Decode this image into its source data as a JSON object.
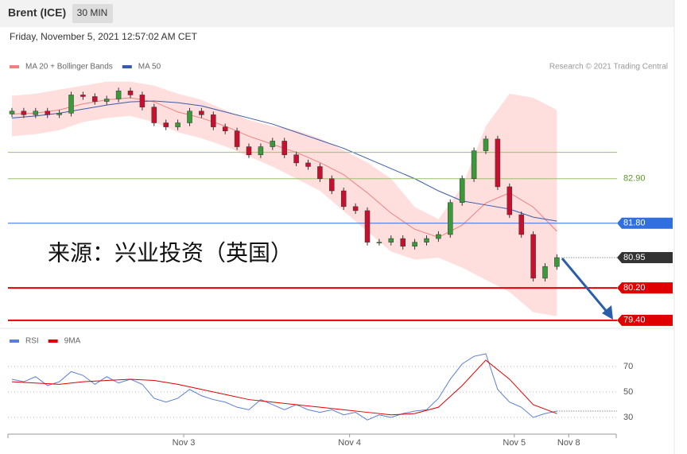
{
  "header": {
    "symbol": "Brent (ICE)",
    "interval": "30 MIN",
    "datetime": "Friday, November 5, 2021 12:57:02 AM CET"
  },
  "chart_data": [
    {
      "type": "candlestick",
      "legend": [
        {
          "name": "MA 20 + Bollinger Bands",
          "color": "#f08080"
        },
        {
          "name": "MA 50",
          "color": "#3a5ba9"
        }
      ],
      "credit": "Research © 2021 Trading Central",
      "watermark": "来源：兴业投资（英国）",
      "ylim": [
        79.2,
        85.45
      ],
      "open": [
        84.5,
        84.57,
        84.48,
        84.57,
        84.48,
        84.52,
        84.97,
        84.93,
        84.81,
        84.87,
        85.07,
        84.97,
        84.67,
        84.28,
        84.18,
        84.28,
        84.57,
        84.48,
        84.18,
        84.08,
        83.69,
        83.49,
        83.69,
        83.83,
        83.49,
        83.29,
        83.2,
        82.9,
        82.6,
        82.21,
        82.11,
        81.33,
        81.33,
        81.42,
        81.23,
        81.33,
        81.42,
        81.52,
        82.31,
        82.9,
        83.59,
        83.88,
        82.7,
        82.01,
        81.52,
        80.44,
        80.73
      ],
      "high": [
        84.65,
        84.65,
        84.65,
        84.65,
        84.6,
        85.05,
        85.05,
        85.01,
        84.95,
        85.15,
        85.15,
        85.05,
        84.75,
        84.36,
        84.36,
        84.65,
        84.65,
        84.56,
        84.26,
        84.16,
        83.77,
        83.77,
        83.91,
        83.91,
        83.57,
        83.37,
        83.28,
        82.98,
        82.68,
        82.29,
        82.19,
        81.41,
        81.5,
        81.5,
        81.41,
        81.5,
        81.6,
        82.39,
        82.98,
        83.67,
        83.96,
        83.96,
        82.78,
        82.09,
        81.6,
        80.81,
        81.03
      ],
      "low": [
        84.42,
        84.4,
        84.4,
        84.4,
        84.4,
        84.44,
        84.85,
        84.73,
        84.73,
        84.79,
        84.89,
        84.59,
        84.2,
        84.1,
        84.1,
        84.2,
        84.4,
        84.1,
        84.0,
        83.61,
        83.41,
        83.41,
        83.61,
        83.41,
        83.21,
        83.12,
        82.82,
        82.52,
        82.13,
        82.03,
        81.25,
        81.25,
        81.25,
        81.15,
        81.15,
        81.25,
        81.34,
        81.44,
        82.23,
        82.82,
        83.51,
        82.62,
        81.93,
        81.44,
        80.36,
        80.36,
        80.65
      ],
      "close": [
        84.57,
        84.48,
        84.57,
        84.48,
        84.52,
        84.97,
        84.93,
        84.81,
        84.87,
        85.07,
        84.97,
        84.67,
        84.28,
        84.18,
        84.28,
        84.57,
        84.48,
        84.18,
        84.08,
        83.69,
        83.49,
        83.69,
        83.83,
        83.49,
        83.29,
        83.2,
        82.9,
        82.6,
        82.21,
        82.11,
        81.33,
        81.33,
        81.42,
        81.23,
        81.33,
        81.42,
        81.52,
        82.31,
        82.9,
        83.59,
        83.88,
        82.7,
        82.01,
        81.52,
        80.44,
        80.73,
        80.95
      ],
      "up_color": "#3a9a3a",
      "down_color": "#c8102e",
      "indicator_x": [
        0,
        2,
        4,
        6,
        8,
        10,
        12,
        14,
        16,
        18,
        20,
        22,
        24,
        26,
        28,
        30,
        32,
        34,
        36,
        38,
        40,
        42,
        44,
        46
      ],
      "ma20": [
        84.5,
        84.52,
        84.6,
        84.75,
        84.85,
        84.9,
        84.8,
        84.55,
        84.4,
        84.2,
        83.95,
        83.75,
        83.55,
        83.3,
        83.0,
        82.55,
        82.05,
        81.65,
        81.45,
        81.75,
        82.3,
        82.55,
        82.2,
        81.6
      ],
      "bb_upper": [
        84.95,
        85.0,
        85.1,
        85.2,
        85.3,
        85.3,
        85.2,
        85.0,
        84.85,
        84.6,
        84.35,
        84.2,
        84.1,
        83.9,
        83.6,
        83.3,
        82.9,
        82.2,
        81.9,
        82.7,
        84.2,
        85.0,
        84.9,
        84.6
      ],
      "bb_lower": [
        83.95,
        84.0,
        84.1,
        84.3,
        84.4,
        84.45,
        84.3,
        84.05,
        83.9,
        83.7,
        83.45,
        83.2,
        82.9,
        82.6,
        82.1,
        81.6,
        81.1,
        80.9,
        80.95,
        80.7,
        80.4,
        80.1,
        79.6,
        79.5
      ],
      "ma50": [
        84.4,
        84.45,
        84.52,
        84.62,
        84.72,
        84.8,
        84.82,
        84.78,
        84.7,
        84.55,
        84.4,
        84.25,
        84.05,
        83.85,
        83.65,
        83.4,
        83.15,
        82.9,
        82.6,
        82.35,
        82.25,
        82.15,
        81.95,
        81.85
      ],
      "levels": [
        {
          "value": 83.55,
          "color": "#9bc06a",
          "text_color": "#5a9a2a"
        },
        {
          "value": 82.9,
          "label": "82.90",
          "color": "#9bc06a",
          "text_color": "#5a9a2a"
        },
        {
          "value": 81.8,
          "label": "81.80",
          "color": "#2f6fe0",
          "text_color": "#fff"
        },
        {
          "value": 80.2,
          "label": "80.20",
          "color": "#e00000",
          "text_color": "#fff"
        },
        {
          "value": 79.4,
          "label": "79.40",
          "color": "#e00000",
          "text_color": "#fff"
        }
      ],
      "current": 80.95,
      "current_color": "#333"
    },
    {
      "type": "line",
      "legend": [
        {
          "name": "RSI",
          "color": "#5b7fd6"
        },
        {
          "name": "9MA",
          "color": "#e00000"
        }
      ],
      "ylim": [
        20.6,
        83.1
      ],
      "yticks": [
        70,
        50,
        30
      ],
      "rsi": [
        60,
        58,
        62,
        55,
        58,
        66,
        63,
        56,
        62,
        57,
        60,
        56,
        45,
        42,
        45,
        52,
        47,
        44,
        42,
        38,
        36,
        44,
        40,
        36,
        40,
        36,
        34,
        36,
        32,
        34,
        28,
        32,
        30,
        33,
        35,
        36,
        45,
        60,
        72,
        78,
        80,
        52,
        42,
        38,
        30,
        33,
        35
      ],
      "ma_x": [
        0,
        2,
        4,
        6,
        8,
        10,
        12,
        14,
        16,
        18,
        20,
        22,
        24,
        26,
        28,
        30,
        32,
        34,
        36,
        38,
        40,
        42,
        44,
        46
      ],
      "ma9": [
        58,
        57,
        56,
        58,
        59,
        60,
        59,
        56,
        52,
        48,
        44,
        42,
        40,
        38,
        36,
        34,
        32,
        33,
        38,
        55,
        75,
        60,
        40,
        33
      ],
      "xticks": [
        {
          "value": 14.5,
          "label": "Nov 3"
        },
        {
          "value": 28.5,
          "label": "Nov 4"
        },
        {
          "value": 42.4,
          "label": "Nov 5"
        },
        {
          "value": 47,
          "label": "Nov 8"
        }
      ]
    }
  ]
}
